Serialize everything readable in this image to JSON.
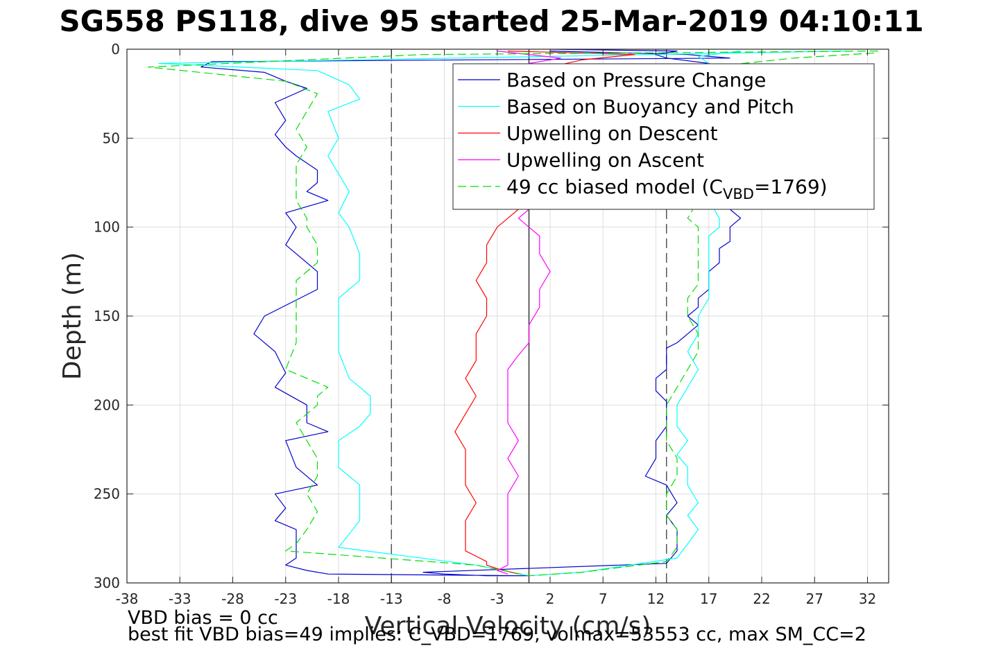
{
  "title": "SG558 PS118, dive 95 started 25-Mar-2019 04:10:11",
  "notes": {
    "vbd_bias": "VBD bias = 0 cc",
    "best_fit": "best fit VBD bias=49 implies: C_VBD=1769, volmax=53553 cc, max SM_CC=2"
  },
  "chart_data": {
    "type": "line",
    "title": "SG558 PS118, dive 95 started 25-Mar-2019 04:10:11",
    "xlabel": "Vertical Velocity (cm/s)",
    "ylabel": "Depth (m)",
    "xlim": [
      -38,
      34
    ],
    "ylim": [
      0,
      300
    ],
    "y_reversed": true,
    "xticks": [
      -38,
      -33,
      -28,
      -23,
      -18,
      -13,
      -8,
      -3,
      2,
      7,
      12,
      17,
      22,
      27,
      32
    ],
    "yticks": [
      0,
      50,
      100,
      150,
      200,
      250,
      300
    ],
    "grid": true,
    "legend_position": "top-right",
    "legend": [
      {
        "label": "Based on Pressure Change",
        "color": "#0000cc",
        "dash": "solid"
      },
      {
        "label": "Based on Buoyancy and Pitch",
        "color": "#00ffff",
        "dash": "solid"
      },
      {
        "label": "Upwelling on Descent",
        "color": "#ff0000",
        "dash": "solid"
      },
      {
        "label": "Upwelling on Ascent",
        "color": "#ff00ff",
        "dash": "solid"
      },
      {
        "label_main": "49 cc biased model (C",
        "label_sub": "VBD",
        "label_end": "=1769)",
        "color": "#00dd00",
        "dash": "dashed"
      }
    ],
    "reference_lines": [
      {
        "x": -13,
        "color": "#555555",
        "dash": "dashed"
      },
      {
        "x": 0,
        "color": "#333333",
        "dash": "solid"
      },
      {
        "x": 13,
        "color": "#555555",
        "dash": "dashed"
      }
    ],
    "series": [
      {
        "color": "#0000cc",
        "x": [
          2,
          15,
          19,
          -30,
          -31,
          -25,
          -23,
          -21,
          -24,
          -23,
          -24,
          -23,
          -22,
          -20,
          -20,
          -21,
          -19,
          -23,
          -22,
          -23,
          -20,
          -20,
          -25,
          -26,
          -24,
          -23,
          -24,
          -21,
          -21,
          -19,
          -23,
          -22,
          -20,
          -24,
          -23,
          -24,
          -22,
          -22,
          -22,
          -22,
          -23,
          -21,
          -19,
          0,
          0,
          -2,
          -4,
          -8,
          -10,
          13,
          14,
          14,
          14,
          13,
          14,
          13,
          11,
          12,
          12,
          13,
          13,
          13,
          12,
          12,
          13,
          13,
          13,
          13,
          14,
          15,
          16,
          15,
          16,
          16,
          17,
          17,
          17,
          18,
          18,
          19,
          19,
          19,
          20,
          19,
          18,
          19,
          18,
          19,
          18,
          17,
          18,
          19,
          20,
          19,
          18,
          19,
          17,
          13,
          12,
          14,
          2
        ],
        "y": [
          1,
          3,
          5,
          7,
          10,
          13,
          18,
          22,
          30,
          40,
          48,
          55,
          60,
          68,
          75,
          80,
          85,
          92,
          100,
          110,
          125,
          135,
          150,
          160,
          170,
          182,
          190,
          200,
          210,
          215,
          220,
          235,
          245,
          250,
          258,
          265,
          270,
          275,
          282,
          286,
          290,
          293,
          295,
          296,
          296,
          296,
          296,
          295,
          294,
          289,
          282,
          275,
          270,
          262,
          255,
          245,
          240,
          230,
          220,
          212,
          205,
          198,
          192,
          185,
          180,
          175,
          170,
          168,
          165,
          160,
          155,
          150,
          145,
          140,
          135,
          130,
          125,
          120,
          112,
          108,
          104,
          100,
          95,
          90,
          85,
          80,
          75,
          70,
          62,
          55,
          48,
          40,
          32,
          25,
          18,
          12,
          8,
          5,
          3,
          1,
          0
        ]
      },
      {
        "color": "#00ffff",
        "x": [
          30,
          -35,
          -20,
          -17,
          -16,
          -19,
          -18,
          -19,
          -18,
          -17,
          -18,
          -17,
          -16,
          -16,
          -18,
          -18,
          -18,
          -17,
          -15,
          -15,
          -16,
          -18,
          -18,
          -16,
          -16,
          -16,
          -18,
          -5,
          0,
          5,
          14,
          15,
          16,
          15,
          16,
          15,
          15,
          14,
          15,
          14,
          14,
          15,
          16,
          15,
          16,
          16,
          17,
          17,
          17,
          17,
          17,
          18,
          18,
          17,
          18,
          18,
          17,
          18,
          17,
          17,
          16,
          20
        ],
        "y": [
          1,
          8,
          12,
          20,
          28,
          35,
          50,
          60,
          70,
          80,
          92,
          100,
          115,
          130,
          140,
          150,
          170,
          185,
          195,
          205,
          212,
          220,
          235,
          245,
          255,
          265,
          280,
          290,
          296,
          294,
          286,
          278,
          270,
          262,
          255,
          245,
          235,
          228,
          220,
          212,
          200,
          190,
          180,
          170,
          160,
          150,
          140,
          130,
          120,
          112,
          105,
          100,
          95,
          85,
          75,
          60,
          45,
          30,
          15,
          8,
          4,
          1
        ]
      },
      {
        "color": "#ff0000",
        "x": [
          -2,
          10,
          5,
          2,
          -1,
          -2,
          -3,
          -4,
          -4,
          -5,
          -4,
          -4,
          -5,
          -5,
          -5,
          -6,
          -5,
          -6,
          -7,
          -6,
          -6,
          -6,
          -5,
          -6,
          -6,
          -6,
          -5,
          -4,
          -4,
          -3,
          -1
        ],
        "y": [
          1,
          3,
          6,
          10,
          90,
          95,
          100,
          110,
          120,
          130,
          140,
          150,
          160,
          168,
          175,
          185,
          195,
          205,
          215,
          225,
          235,
          245,
          255,
          265,
          275,
          282,
          285,
          288,
          290,
          292,
          295
        ]
      },
      {
        "color": "#ff00ff",
        "x": [
          -3,
          3,
          0,
          0,
          -1,
          0,
          1,
          1,
          2,
          1,
          1,
          0,
          0,
          -1,
          -2,
          -2,
          -2,
          -2,
          -1,
          -2,
          -1,
          -2,
          -2,
          -2,
          -2,
          -2,
          -2,
          -3,
          -2
        ],
        "y": [
          1,
          5,
          8,
          90,
          95,
          100,
          105,
          115,
          125,
          135,
          145,
          155,
          165,
          172,
          180,
          190,
          200,
          210,
          220,
          230,
          240,
          250,
          260,
          270,
          278,
          285,
          290,
          293,
          295
        ]
      },
      {
        "color": "#00dd00",
        "dashed": true,
        "x": [
          33,
          -10,
          -36,
          -23,
          -20,
          -21,
          -22,
          -21,
          -22,
          -22,
          -22,
          -21,
          -21,
          -20,
          -20,
          -22,
          -22,
          -22,
          -23,
          -19,
          -20,
          -20,
          -22,
          -21,
          -20,
          -20,
          -21,
          -20,
          -21,
          -22,
          -23,
          -5,
          0,
          5,
          13,
          14,
          14,
          13,
          13,
          14,
          14,
          13,
          13,
          13,
          14,
          15,
          16,
          16,
          15,
          15,
          16,
          16,
          16,
          16,
          16,
          15,
          16,
          17,
          17,
          17,
          16,
          17,
          25,
          33
        ],
        "y": [
          1,
          3,
          10,
          18,
          25,
          35,
          45,
          55,
          65,
          75,
          85,
          95,
          100,
          110,
          120,
          130,
          150,
          165,
          180,
          190,
          195,
          200,
          210,
          220,
          230,
          240,
          250,
          260,
          270,
          278,
          282,
          290,
          296,
          294,
          288,
          280,
          270,
          262,
          250,
          240,
          230,
          220,
          210,
          200,
          190,
          180,
          170,
          160,
          150,
          140,
          132,
          125,
          115,
          108,
          100,
          95,
          85,
          75,
          60,
          40,
          20,
          10,
          5,
          2
        ]
      }
    ]
  }
}
